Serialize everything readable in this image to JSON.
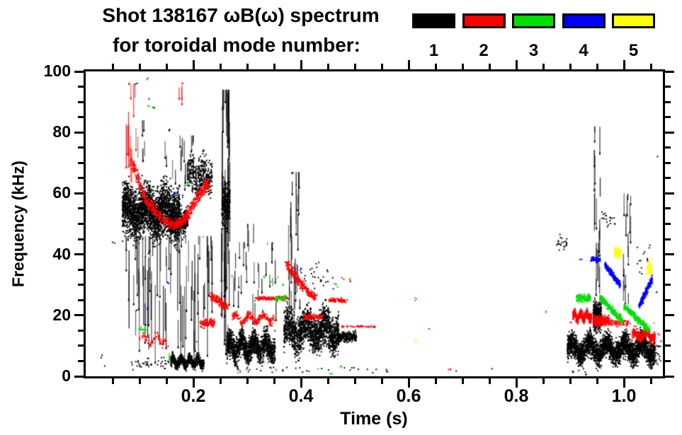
{
  "header": {
    "title_line1": "Shot 138167 ωB(ω) spectrum",
    "title_line2": "for toroidal mode number:"
  },
  "legend": {
    "entries": [
      {
        "mode": 1,
        "label": "1",
        "color": "#000000"
      },
      {
        "mode": 2,
        "label": "2",
        "color": "#ff0000"
      },
      {
        "mode": 3,
        "label": "3",
        "color": "#00dd00"
      },
      {
        "mode": 4,
        "label": "4",
        "color": "#0000ff"
      },
      {
        "mode": 5,
        "label": "5",
        "color": "#ffff00"
      }
    ]
  },
  "chart_data": {
    "type": "scatter",
    "title": "Shot 138167 ωB(ω) spectrum for toroidal mode number: 1–5",
    "xlabel": "Time (s)",
    "ylabel": "Frequency (kHz)",
    "xlim": [
      0,
      1.072
    ],
    "ylim": [
      0,
      100
    ],
    "x_major_ticks": [
      {
        "v": 0.2,
        "label": "0.2"
      },
      {
        "v": 0.4,
        "label": "0.4"
      },
      {
        "v": 0.6,
        "label": "0.6"
      },
      {
        "v": 0.8,
        "label": "0.8"
      },
      {
        "v": 1.0,
        "label": "1.0"
      }
    ],
    "x_minor_step": 0.05,
    "y_major_ticks": [
      {
        "v": 0,
        "label": "0"
      },
      {
        "v": 20,
        "label": "20"
      },
      {
        "v": 40,
        "label": "40"
      },
      {
        "v": 60,
        "label": "60"
      },
      {
        "v": 80,
        "label": "80"
      },
      {
        "v": 100,
        "label": "100"
      }
    ],
    "y_minor_step": 5,
    "legend_position": "top-right",
    "grid": false,
    "features": [
      {
        "mode": 1,
        "shape": "blob",
        "t": [
          0.068,
          0.175
        ],
        "f": [
          42,
          66
        ],
        "n": 2600,
        "wave": 2,
        "wn": 3
      },
      {
        "mode": 1,
        "shape": "vstreaks",
        "t": [
          0.075,
          0.235
        ],
        "f": [
          4,
          46
        ],
        "k": 85,
        "len": [
          4,
          26
        ]
      },
      {
        "mode": 1,
        "shape": "blob",
        "t": [
          0.155,
          0.19
        ],
        "f": [
          44,
          57
        ],
        "n": 450
      },
      {
        "mode": 1,
        "shape": "blob",
        "t": [
          0.19,
          0.235
        ],
        "f": [
          57,
          74
        ],
        "n": 380,
        "wave": 2,
        "wn": 2
      },
      {
        "mode": 1,
        "shape": "vstreaks",
        "t": [
          0.095,
          0.115
        ],
        "f": [
          70,
          84
        ],
        "k": 6,
        "len": [
          3,
          8
        ]
      },
      {
        "mode": 1,
        "shape": "vstreaks",
        "t": [
          0.145,
          0.205
        ],
        "f": [
          60,
          79
        ],
        "k": 18,
        "len": [
          2,
          8
        ]
      },
      {
        "mode": 1,
        "shape": "specks",
        "pts": [
          [
            0.093,
            96
          ],
          [
            0.117,
            91
          ],
          [
            0.128,
            88
          ],
          [
            0.155,
            80.5
          ],
          [
            0.21,
            71
          ],
          [
            0.052,
            44
          ],
          [
            0.03,
            6.5
          ],
          [
            0.034,
            3.5
          ]
        ]
      },
      {
        "mode": 1,
        "shape": "blob",
        "t": [
          0.158,
          0.22
        ],
        "f": [
          2,
          7.5
        ],
        "n": 650,
        "wave": 1.2,
        "wn": 4
      },
      {
        "mode": 1,
        "shape": "blob",
        "t": [
          0.085,
          0.155
        ],
        "f": [
          1.5,
          7
        ],
        "n": 40
      },
      {
        "mode": 1,
        "shape": "vstreaks",
        "t": [
          0.252,
          0.269
        ],
        "f": [
          5,
          94
        ],
        "k": 42,
        "len": [
          5,
          40
        ]
      },
      {
        "mode": 1,
        "shape": "blob",
        "t": [
          0.253,
          0.268
        ],
        "f": [
          45,
          67
        ],
        "n": 260
      },
      {
        "mode": 1,
        "shape": "blob",
        "t": [
          0.262,
          0.352
        ],
        "f": [
          3,
          16
        ],
        "n": 1500,
        "wave": 2,
        "wn": 4
      },
      {
        "mode": 1,
        "shape": "vstreaks",
        "t": [
          0.27,
          0.36
        ],
        "f": [
          17,
          44
        ],
        "k": 26,
        "len": [
          2,
          10
        ]
      },
      {
        "mode": 1,
        "shape": "vstreaks",
        "t": [
          0.295,
          0.315
        ],
        "f": [
          30,
          50
        ],
        "k": 6,
        "len": [
          3,
          8
        ]
      },
      {
        "mode": 1,
        "shape": "vstreaks",
        "t": [
          0.377,
          0.398
        ],
        "f": [
          18,
          67
        ],
        "k": 30,
        "len": [
          3,
          18
        ]
      },
      {
        "mode": 1,
        "shape": "blob",
        "t": [
          0.368,
          0.47
        ],
        "f": [
          6,
          24
        ],
        "n": 1700,
        "wave": 2.5,
        "wn": 3
      },
      {
        "mode": 1,
        "shape": "blob",
        "t": [
          0.468,
          0.503
        ],
        "f": [
          10.5,
          15.5
        ],
        "n": 260
      },
      {
        "mode": 1,
        "shape": "blob",
        "t": [
          0.4,
          0.46
        ],
        "f": [
          25,
          40
        ],
        "n": 30
      },
      {
        "mode": 1,
        "shape": "blob",
        "t": [
          0.27,
          0.56
        ],
        "f": [
          0.5,
          4
        ],
        "n": 26
      },
      {
        "mode": 1,
        "shape": "specks",
        "pts": [
          [
            0.56,
            1.5
          ],
          [
            0.69,
            1.5
          ],
          [
            0.753,
            2.3
          ]
        ]
      },
      {
        "mode": 1,
        "shape": "blob",
        "t": [
          0.895,
          1.058
        ],
        "f": [
          3,
          15
        ],
        "n": 2800,
        "wave": 2,
        "wn": 5
      },
      {
        "mode": 1,
        "shape": "blob",
        "t": [
          0.943,
          0.958
        ],
        "f": [
          13,
          26
        ],
        "n": 420
      },
      {
        "mode": 1,
        "shape": "vstreaks",
        "t": [
          0.944,
          0.956
        ],
        "f": [
          26,
          82
        ],
        "k": 20,
        "len": [
          3,
          14
        ]
      },
      {
        "mode": 1,
        "shape": "vstreaks",
        "t": [
          0.998,
          1.013
        ],
        "f": [
          22,
          60
        ],
        "k": 15,
        "len": [
          2,
          10
        ]
      },
      {
        "mode": 1,
        "shape": "blob",
        "t": [
          0.958,
          0.985
        ],
        "f": [
          44,
          58
        ],
        "n": 20
      },
      {
        "mode": 1,
        "shape": "blob",
        "t": [
          0.875,
          0.897
        ],
        "f": [
          40,
          47
        ],
        "n": 22
      },
      {
        "mode": 1,
        "shape": "blob",
        "t": [
          1.02,
          1.05
        ],
        "f": [
          30,
          47
        ],
        "n": 14
      },
      {
        "mode": 1,
        "shape": "blob",
        "t": [
          1.05,
          1.07
        ],
        "f": [
          2,
          13
        ],
        "n": 30
      },
      {
        "mode": 1,
        "shape": "specks",
        "pts": [
          [
            1.06,
            72
          ],
          [
            0.905,
            1.5
          ],
          [
            0.93,
            1
          ]
        ]
      },
      {
        "mode": 2,
        "shape": "vstreaks",
        "t": [
          0.072,
          0.095
        ],
        "f": [
          63,
          96
        ],
        "k": 13,
        "len": [
          4,
          16
        ]
      },
      {
        "mode": 2,
        "shape": "curve",
        "pts": [
          [
            0.085,
            71
          ],
          [
            0.1,
            63
          ],
          [
            0.115,
            57
          ],
          [
            0.13,
            54
          ],
          [
            0.147,
            51
          ],
          [
            0.163,
            49.5
          ],
          [
            0.178,
            50.5
          ],
          [
            0.193,
            54
          ],
          [
            0.207,
            58.5
          ],
          [
            0.22,
            61.5
          ],
          [
            0.227,
            63
          ]
        ],
        "w": 2.2,
        "n": 750
      },
      {
        "mode": 2,
        "shape": "vstreaks",
        "t": [
          0.173,
          0.183
        ],
        "f": [
          88,
          96
        ],
        "k": 4,
        "len": [
          2,
          6
        ]
      },
      {
        "mode": 2,
        "shape": "specks",
        "pts": [
          [
            0.115,
            97.5
          ],
          [
            0.205,
            11
          ],
          [
            0.152,
            9.5
          ]
        ]
      },
      {
        "mode": 2,
        "shape": "blob",
        "t": [
          0.1,
          0.15
        ],
        "f": [
          9.5,
          14.5
        ],
        "n": 70,
        "wave": 1.5,
        "wn": 2
      },
      {
        "mode": 2,
        "shape": "blob",
        "t": [
          0.212,
          0.24
        ],
        "f": [
          15.5,
          19.5
        ],
        "n": 110
      },
      {
        "mode": 2,
        "shape": "curve",
        "pts": [
          [
            0.232,
            26.5
          ],
          [
            0.248,
            24.5
          ],
          [
            0.262,
            22.8
          ]
        ],
        "w": 1.6,
        "n": 150
      },
      {
        "mode": 2,
        "shape": "blob",
        "t": [
          0.272,
          0.35
        ],
        "f": [
          17,
          21
        ],
        "n": 240,
        "wave": 1.2,
        "wn": 3
      },
      {
        "mode": 2,
        "shape": "blob",
        "t": [
          0.314,
          0.375
        ],
        "f": [
          24.5,
          26.5
        ],
        "n": 120
      },
      {
        "mode": 2,
        "shape": "curve",
        "pts": [
          [
            0.372,
            37.5
          ],
          [
            0.385,
            34
          ],
          [
            0.399,
            30.5
          ],
          [
            0.413,
            27.5
          ],
          [
            0.428,
            25.5
          ]
        ],
        "w": 1.8,
        "n": 280
      },
      {
        "mode": 2,
        "shape": "blob",
        "t": [
          0.405,
          0.44
        ],
        "f": [
          18,
          21
        ],
        "n": 80
      },
      {
        "mode": 2,
        "shape": "blob",
        "t": [
          0.452,
          0.486
        ],
        "f": [
          23.8,
          26
        ],
        "n": 90
      },
      {
        "mode": 2,
        "shape": "blob",
        "t": [
          0.472,
          0.54
        ],
        "f": [
          15.8,
          16.8
        ],
        "n": 40
      },
      {
        "mode": 2,
        "shape": "specks",
        "pts": [
          [
            0.478,
            32
          ],
          [
            0.49,
            31.5
          ],
          [
            0.64,
            15.5
          ],
          [
            0.676,
            2.3
          ]
        ]
      },
      {
        "mode": 2,
        "shape": "blob",
        "t": [
          0.905,
          0.94
        ],
        "f": [
          17.5,
          22
        ],
        "n": 420,
        "wave": 1,
        "wn": 3
      },
      {
        "mode": 2,
        "shape": "blob",
        "t": [
          0.943,
          0.973
        ],
        "f": [
          16,
          20.5
        ],
        "n": 330
      },
      {
        "mode": 2,
        "shape": "blob",
        "t": [
          0.975,
          1.012
        ],
        "f": [
          16,
          19
        ],
        "n": 70
      },
      {
        "mode": 2,
        "shape": "blob",
        "t": [
          1.015,
          1.058
        ],
        "f": [
          11,
          16
        ],
        "n": 340,
        "wave": 1,
        "wn": 2
      },
      {
        "mode": 2,
        "shape": "specks",
        "pts": [
          [
            0.9,
            18
          ],
          [
            1.065,
            14
          ]
        ]
      },
      {
        "mode": 3,
        "shape": "specks",
        "pts": [
          [
            0.117,
            89
          ],
          [
            0.124,
            88.5
          ],
          [
            0.163,
            57
          ],
          [
            0.187,
            63
          ]
        ]
      },
      {
        "mode": 3,
        "shape": "blob",
        "t": [
          0.098,
          0.112
        ],
        "f": [
          13,
          17.5
        ],
        "n": 12
      },
      {
        "mode": 3,
        "shape": "vstreaks",
        "t": [
          0.153,
          0.158
        ],
        "f": [
          3,
          7.6
        ],
        "k": 2,
        "len": [
          3,
          5
        ]
      },
      {
        "mode": 3,
        "shape": "specks",
        "pts": [
          [
            0.272,
            33
          ],
          [
            0.332,
            32.4
          ],
          [
            0.343,
            31
          ],
          [
            0.367,
            30
          ],
          [
            0.356,
            32
          ]
        ]
      },
      {
        "mode": 3,
        "shape": "blob",
        "t": [
          0.35,
          0.372
        ],
        "f": [
          24,
          27
        ],
        "n": 40
      },
      {
        "mode": 3,
        "shape": "specks",
        "pts": [
          [
            0.285,
            1.5
          ],
          [
            0.337,
            4
          ],
          [
            0.352,
            2.3
          ],
          [
            0.43,
            2
          ],
          [
            0.455,
            1.2
          ],
          [
            0.475,
            3
          ],
          [
            0.465,
            30
          ],
          [
            0.47,
            29.5
          ]
        ]
      },
      {
        "mode": 3,
        "shape": "specks",
        "pts": [
          [
            0.613,
            25.3
          ],
          [
            0.854,
            21
          ]
        ]
      },
      {
        "mode": 3,
        "shape": "blob",
        "t": [
          0.912,
          0.938
        ],
        "f": [
          24,
          27.5
        ],
        "n": 130
      },
      {
        "mode": 3,
        "shape": "blob",
        "t": [
          0.955,
          0.998
        ],
        "f": [
          18,
          26
        ],
        "n": 280,
        "slope": "down"
      },
      {
        "mode": 3,
        "shape": "blob",
        "t": [
          1.0,
          1.048
        ],
        "f": [
          15,
          23
        ],
        "n": 260,
        "slope": "down"
      },
      {
        "mode": 3,
        "shape": "specks",
        "pts": [
          [
            1.055,
            17
          ]
        ]
      },
      {
        "mode": 4,
        "shape": "specks",
        "pts": [
          [
            0.093,
            21.5
          ],
          [
            0.113,
            22.2
          ],
          [
            0.152,
            30.5
          ],
          [
            0.166,
            60
          ],
          [
            0.18,
            59
          ],
          [
            0.4,
            35
          ],
          [
            0.92,
            38.3
          ],
          [
            1.062,
            27.5
          ]
        ]
      },
      {
        "mode": 4,
        "shape": "blob",
        "t": [
          0.938,
          0.956
        ],
        "f": [
          37,
          39.5
        ],
        "n": 60
      },
      {
        "mode": 4,
        "shape": "blob",
        "t": [
          0.965,
          0.993
        ],
        "f": [
          30,
          36.5
        ],
        "n": 240,
        "slope": "down"
      },
      {
        "mode": 4,
        "shape": "blob",
        "t": [
          1.028,
          1.053
        ],
        "f": [
          23,
          32
        ],
        "n": 220,
        "slope": "up"
      },
      {
        "mode": 5,
        "shape": "specks",
        "pts": [
          [
            0.613,
            11.5
          ]
        ]
      },
      {
        "mode": 5,
        "shape": "blob",
        "t": [
          0.982,
          0.994
        ],
        "f": [
          38,
          43
        ],
        "n": 80
      },
      {
        "mode": 5,
        "shape": "blob",
        "t": [
          1.042,
          1.053
        ],
        "f": [
          32,
          39
        ],
        "n": 60
      }
    ]
  }
}
